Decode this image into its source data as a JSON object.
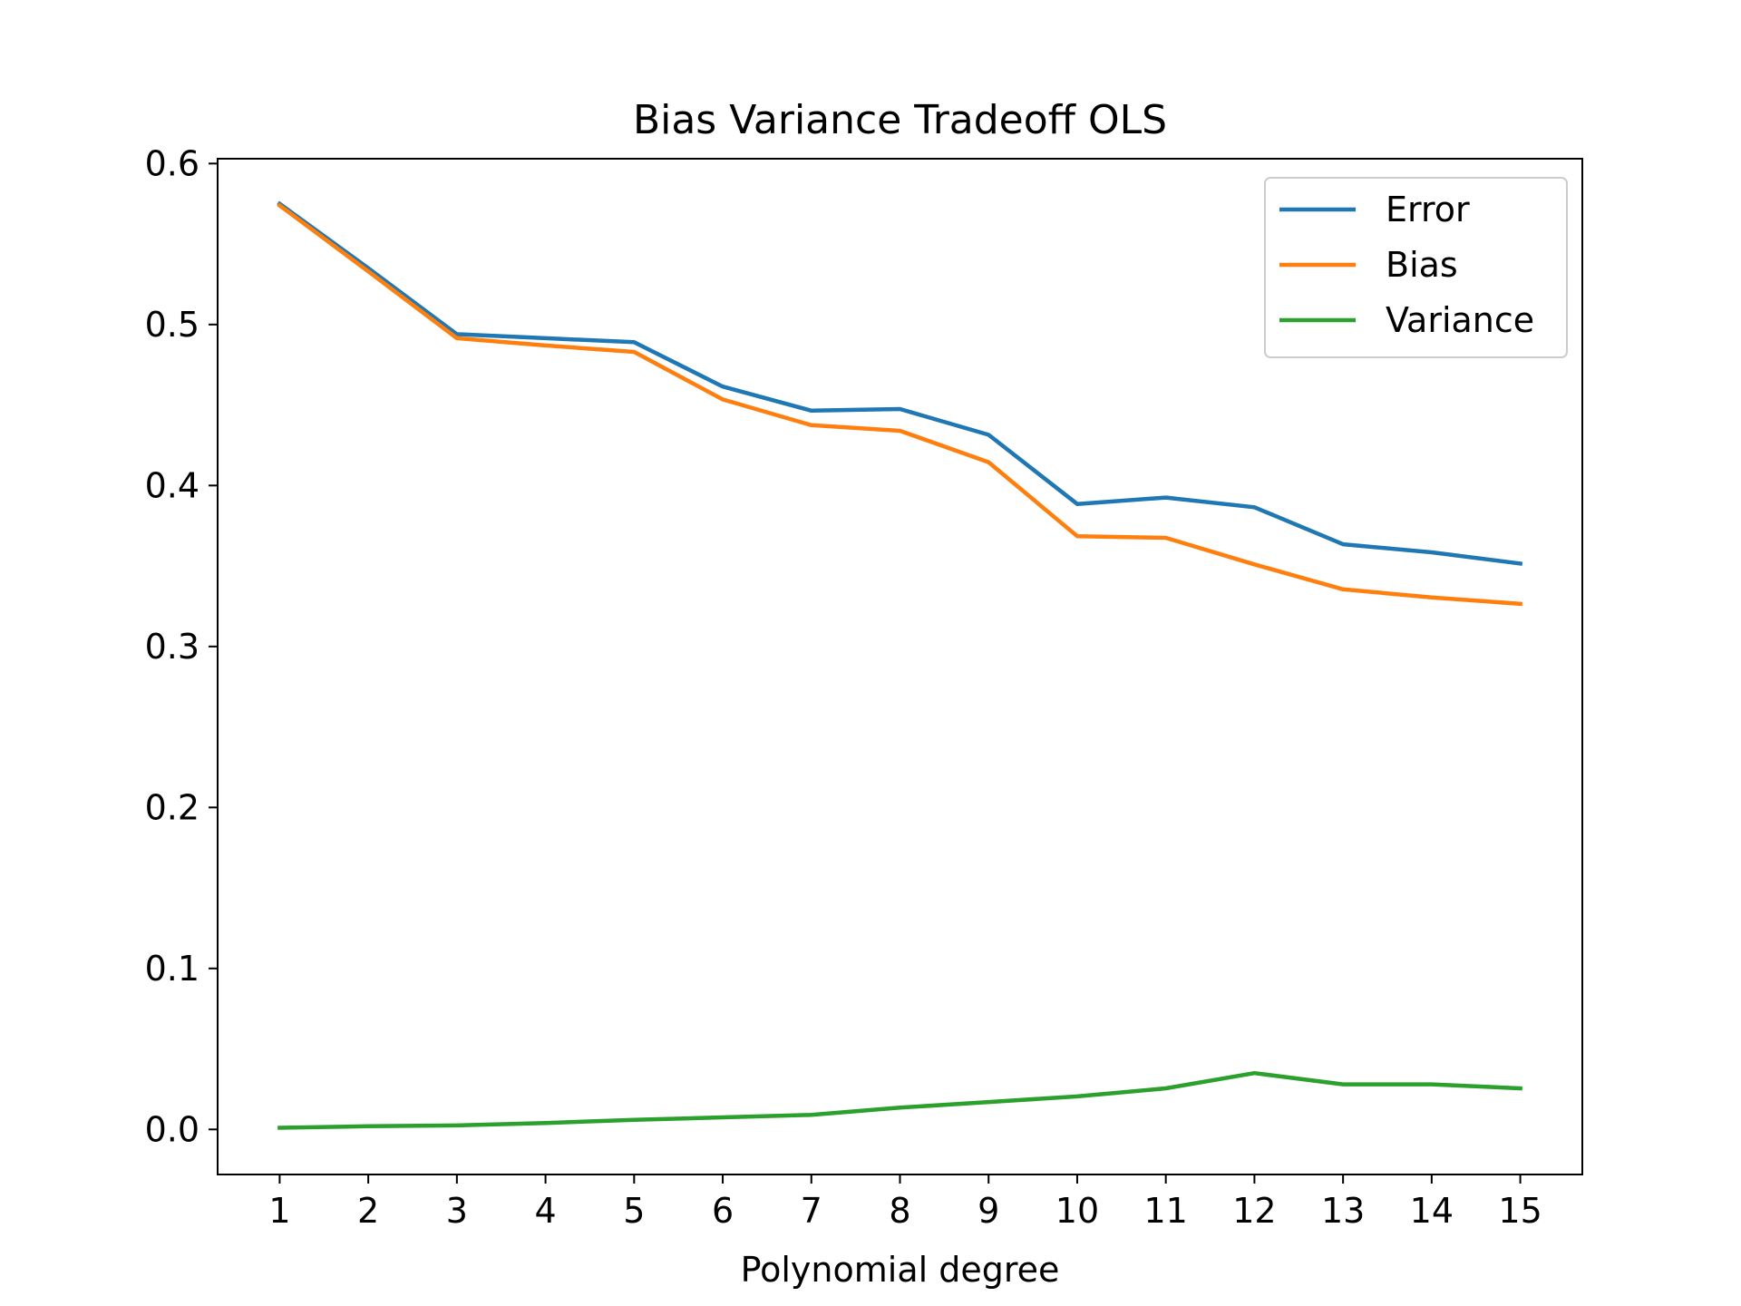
{
  "chart_data": {
    "type": "line",
    "title": "Bias Variance Tradeoff OLS",
    "xlabel": "Polynomial degree",
    "ylabel": "",
    "x": [
      1,
      2,
      3,
      4,
      5,
      6,
      7,
      8,
      9,
      10,
      11,
      12,
      13,
      14,
      15
    ],
    "xticks": [
      "1",
      "2",
      "3",
      "4",
      "5",
      "6",
      "7",
      "8",
      "9",
      "10",
      "11",
      "12",
      "13",
      "14",
      "15"
    ],
    "xlim": [
      0.3,
      15.7
    ],
    "ylim": [
      -0.028,
      0.603
    ],
    "yticks": [
      0.0,
      0.1,
      0.2,
      0.3,
      0.4,
      0.5,
      0.6
    ],
    "ytick_labels": [
      "0.0",
      "0.1",
      "0.2",
      "0.3",
      "0.4",
      "0.5",
      "0.6"
    ],
    "grid": false,
    "legend_position": "upper right",
    "series": [
      {
        "name": "Error",
        "color": "#1f77b4",
        "values": [
          0.575,
          0.535,
          0.494,
          0.4915,
          0.489,
          0.4615,
          0.4465,
          0.4475,
          0.4315,
          0.3885,
          0.3925,
          0.3865,
          0.3635,
          0.3585,
          0.3515
        ]
      },
      {
        "name": "Bias",
        "color": "#ff7f0e",
        "values": [
          0.574,
          0.533,
          0.4915,
          0.487,
          0.483,
          0.4535,
          0.4375,
          0.434,
          0.4145,
          0.3685,
          0.3675,
          0.351,
          0.3355,
          0.3305,
          0.3265
        ]
      },
      {
        "name": "Variance",
        "color": "#2ca02c",
        "values": [
          0.001,
          0.002,
          0.0025,
          0.004,
          0.006,
          0.0075,
          0.009,
          0.0135,
          0.017,
          0.0205,
          0.0255,
          0.035,
          0.028,
          0.028,
          0.0255
        ]
      }
    ]
  }
}
